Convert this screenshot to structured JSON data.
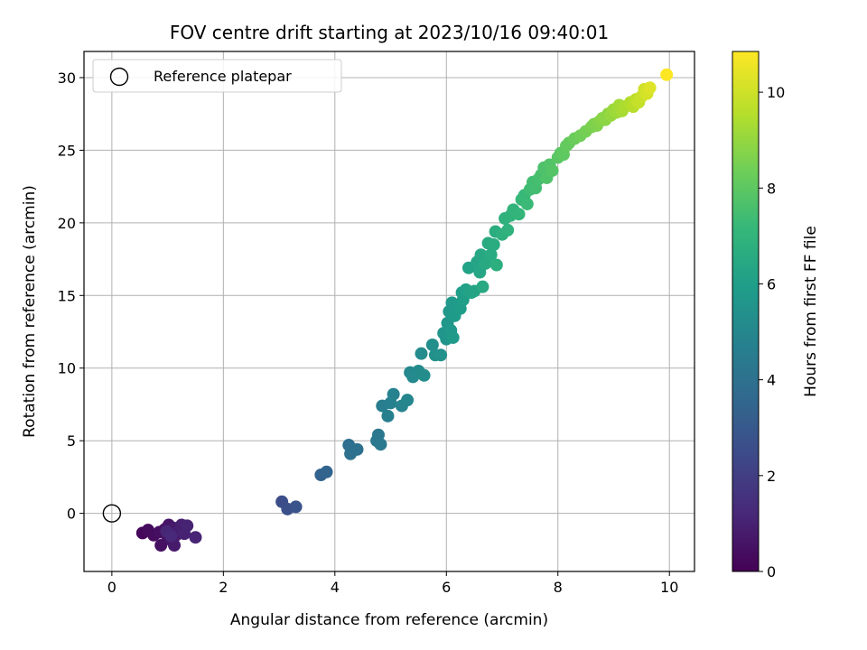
{
  "chart_data": {
    "type": "scatter",
    "title": "FOV centre drift starting at 2023/10/16 09:40:01",
    "xlabel": "Angular distance from reference (arcmin)",
    "ylabel": "Rotation from reference (arcmin)",
    "xlim": [
      -0.5,
      10.45
    ],
    "ylim": [
      -4.0,
      31.8
    ],
    "xticks": [
      0,
      2,
      4,
      6,
      8,
      10
    ],
    "xtick_labels": [
      "0",
      "2",
      "4",
      "6",
      "8",
      "10"
    ],
    "yticks": [
      0,
      5,
      10,
      15,
      20,
      25,
      30
    ],
    "ytick_labels": [
      "0",
      "5",
      "10",
      "15",
      "20",
      "25",
      "30"
    ],
    "grid": true,
    "legend": {
      "position": "top-left",
      "entries": [
        "Reference platepar"
      ]
    },
    "reference_point": {
      "x": 0,
      "y": 0
    },
    "colorbar": {
      "label": "Hours from first FF file",
      "min": 0,
      "max": 10.85,
      "ticks": [
        0,
        2,
        4,
        6,
        8,
        10
      ],
      "tick_labels": [
        "0",
        "2",
        "4",
        "6",
        "8",
        "10"
      ],
      "colormap": [
        "#440154",
        "#482878",
        "#3e4989",
        "#31688e",
        "#26828e",
        "#1f9e89",
        "#35b779",
        "#6ece58",
        "#b5de2b",
        "#fde725"
      ]
    },
    "points": [
      [
        0.55,
        -1.35,
        0.2
      ],
      [
        0.65,
        -1.15,
        0.3
      ],
      [
        0.75,
        -1.5,
        0.35
      ],
      [
        0.85,
        -1.3,
        0.4
      ],
      [
        0.88,
        -2.2,
        0.45
      ],
      [
        0.95,
        -1.1,
        0.5
      ],
      [
        1.0,
        -1.6,
        0.55
      ],
      [
        1.02,
        -0.8,
        0.6
      ],
      [
        1.05,
        -1.3,
        0.65
      ],
      [
        1.08,
        -1.9,
        0.7
      ],
      [
        1.1,
        -1.0,
        0.75
      ],
      [
        1.12,
        -2.2,
        0.8
      ],
      [
        1.15,
        -1.5,
        0.85
      ],
      [
        1.2,
        -1.2,
        0.9
      ],
      [
        1.25,
        -0.8,
        0.95
      ],
      [
        1.3,
        -1.4,
        1.0
      ],
      [
        1.35,
        -0.85,
        1.05
      ],
      [
        1.5,
        -1.65,
        1.1
      ],
      [
        0.98,
        -1.25,
        1.15
      ],
      [
        1.06,
        -1.55,
        1.2
      ],
      [
        3.05,
        0.8,
        2.6
      ],
      [
        3.15,
        0.3,
        2.7
      ],
      [
        3.3,
        0.45,
        2.8
      ],
      [
        3.75,
        2.65,
        3.4
      ],
      [
        3.85,
        2.85,
        3.5
      ],
      [
        4.25,
        4.7,
        3.9
      ],
      [
        4.28,
        4.1,
        4.0
      ],
      [
        4.4,
        4.4,
        4.05
      ],
      [
        4.75,
        5.0,
        4.3
      ],
      [
        4.78,
        5.4,
        4.35
      ],
      [
        4.82,
        4.75,
        4.4
      ],
      [
        4.85,
        7.4,
        4.6
      ],
      [
        4.95,
        6.7,
        4.7
      ],
      [
        5.0,
        7.6,
        4.75
      ],
      [
        5.05,
        8.2,
        4.8
      ],
      [
        5.2,
        7.4,
        4.9
      ],
      [
        5.3,
        7.8,
        5.0
      ],
      [
        5.35,
        9.7,
        5.1
      ],
      [
        5.4,
        9.4,
        5.15
      ],
      [
        5.5,
        9.8,
        5.2
      ],
      [
        5.55,
        11.0,
        5.25
      ],
      [
        5.6,
        9.5,
        5.3
      ],
      [
        5.75,
        11.6,
        5.4
      ],
      [
        5.8,
        10.9,
        5.45
      ],
      [
        5.9,
        10.9,
        5.5
      ],
      [
        5.95,
        12.4,
        5.6
      ],
      [
        6.0,
        12.0,
        5.65
      ],
      [
        6.02,
        13.1,
        5.7
      ],
      [
        6.05,
        13.9,
        5.75
      ],
      [
        6.08,
        12.6,
        5.8
      ],
      [
        6.1,
        14.5,
        5.85
      ],
      [
        6.12,
        12.1,
        5.9
      ],
      [
        6.15,
        13.6,
        5.95
      ],
      [
        6.25,
        14.1,
        6.0
      ],
      [
        6.28,
        15.2,
        6.05
      ],
      [
        6.3,
        14.7,
        6.1
      ],
      [
        6.35,
        15.4,
        6.15
      ],
      [
        6.4,
        16.9,
        6.2
      ],
      [
        6.45,
        15.2,
        6.25
      ],
      [
        6.5,
        15.3,
        6.3
      ],
      [
        6.55,
        17.3,
        6.35
      ],
      [
        6.6,
        16.6,
        6.4
      ],
      [
        6.62,
        17.8,
        6.45
      ],
      [
        6.65,
        15.6,
        6.5
      ],
      [
        6.7,
        17.2,
        6.55
      ],
      [
        6.75,
        18.6,
        6.6
      ],
      [
        6.8,
        17.8,
        6.65
      ],
      [
        6.85,
        18.5,
        6.7
      ],
      [
        6.88,
        19.4,
        6.75
      ],
      [
        6.9,
        17.1,
        6.8
      ],
      [
        7.0,
        19.2,
        6.85
      ],
      [
        7.05,
        20.3,
        6.9
      ],
      [
        7.1,
        19.5,
        6.95
      ],
      [
        7.15,
        20.5,
        7.0
      ],
      [
        7.2,
        20.9,
        7.05
      ],
      [
        7.3,
        20.6,
        7.15
      ],
      [
        7.35,
        21.6,
        7.25
      ],
      [
        7.4,
        21.9,
        7.3
      ],
      [
        7.45,
        21.3,
        7.35
      ],
      [
        7.5,
        22.3,
        7.45
      ],
      [
        7.55,
        22.8,
        7.5
      ],
      [
        7.6,
        22.4,
        7.55
      ],
      [
        7.65,
        23.0,
        7.6
      ],
      [
        7.7,
        23.3,
        7.65
      ],
      [
        7.75,
        23.8,
        7.75
      ],
      [
        7.8,
        23.1,
        7.8
      ],
      [
        7.85,
        24.0,
        7.85
      ],
      [
        7.9,
        23.6,
        7.9
      ],
      [
        8.0,
        24.5,
        8.0
      ],
      [
        8.05,
        24.8,
        8.05
      ],
      [
        8.1,
        24.7,
        8.1
      ],
      [
        8.15,
        25.3,
        8.2
      ],
      [
        8.2,
        25.5,
        8.25
      ],
      [
        8.3,
        25.8,
        8.35
      ],
      [
        8.4,
        26.0,
        8.45
      ],
      [
        8.5,
        26.3,
        8.55
      ],
      [
        8.6,
        26.6,
        8.65
      ],
      [
        8.65,
        26.8,
        8.7
      ],
      [
        8.7,
        26.7,
        8.75
      ],
      [
        8.75,
        27.0,
        8.85
      ],
      [
        8.8,
        27.2,
        8.9
      ],
      [
        8.85,
        27.1,
        8.95
      ],
      [
        8.9,
        27.5,
        9.0
      ],
      [
        8.95,
        27.4,
        9.1
      ],
      [
        9.0,
        27.8,
        9.2
      ],
      [
        9.05,
        27.6,
        9.25
      ],
      [
        9.1,
        28.1,
        9.35
      ],
      [
        9.15,
        27.7,
        9.4
      ],
      [
        9.2,
        28.0,
        9.5
      ],
      [
        9.3,
        28.3,
        9.6
      ],
      [
        9.35,
        28.0,
        9.7
      ],
      [
        9.4,
        28.5,
        9.8
      ],
      [
        9.45,
        28.3,
        9.9
      ],
      [
        9.5,
        28.7,
        10.0
      ],
      [
        9.55,
        29.2,
        10.1
      ],
      [
        9.6,
        28.9,
        10.2
      ],
      [
        9.65,
        29.3,
        10.3
      ],
      [
        9.95,
        30.2,
        10.85
      ]
    ]
  }
}
